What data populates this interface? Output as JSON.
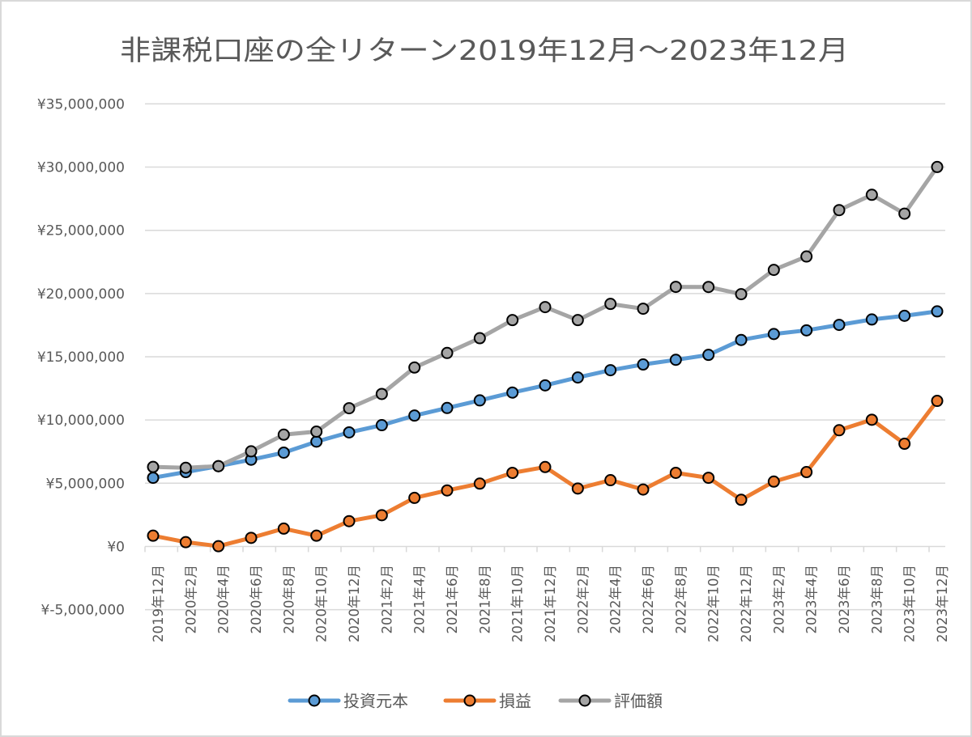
{
  "chart_data": {
    "type": "line",
    "title": "非課税口座の全リターン2019年12月～2023年12月",
    "xlabel": "",
    "ylabel": "",
    "ylim": [
      -5000000,
      35000000
    ],
    "y_ticks": [
      35000000,
      30000000,
      25000000,
      20000000,
      15000000,
      10000000,
      5000000,
      0,
      -5000000
    ],
    "y_tick_labels": [
      "¥35,000,000",
      "¥30,000,000",
      "¥25,000,000",
      "¥20,000,000",
      "¥15,000,000",
      "¥10,000,000",
      "¥5,000,000",
      "¥0",
      "¥-5,000,000"
    ],
    "grid": true,
    "legend_position": "bottom",
    "categories": [
      "2019年12月",
      "2020年2月",
      "2020年4月",
      "2020年6月",
      "2020年8月",
      "2020年10月",
      "2020年12月",
      "2021年2月",
      "2021年4月",
      "2021年6月",
      "2021年8月",
      "2021年10月",
      "2021年12月",
      "2022年2月",
      "2022年4月",
      "2022年6月",
      "2022年8月",
      "2022年10月",
      "2022年12月",
      "2023年2月",
      "2023年4月",
      "2023年6月",
      "2023年8月",
      "2023年10月",
      "2023年12月"
    ],
    "series": [
      {
        "name": "投資元本",
        "color": "#5b9bd5",
        "values": [
          5430000,
          5880000,
          6350000,
          6860000,
          7420000,
          8290000,
          9020000,
          9590000,
          10350000,
          10950000,
          11550000,
          12170000,
          12740000,
          13360000,
          13940000,
          14390000,
          14760000,
          15150000,
          16330000,
          16800000,
          17090000,
          17520000,
          17950000,
          18240000,
          18590000
        ]
      },
      {
        "name": "損益",
        "color": "#ed7d31",
        "values": [
          850000,
          340000,
          20000,
          680000,
          1410000,
          850000,
          2000000,
          2470000,
          3840000,
          4430000,
          4970000,
          5820000,
          6280000,
          4580000,
          5240000,
          4500000,
          5820000,
          5430000,
          3690000,
          5130000,
          5880000,
          9190000,
          10020000,
          8120000,
          11510000
        ]
      },
      {
        "name": "評価額",
        "color": "#a5a5a5",
        "values": [
          6290000,
          6220000,
          6350000,
          7520000,
          8840000,
          9080000,
          10930000,
          12060000,
          14150000,
          15300000,
          16470000,
          17900000,
          18930000,
          17900000,
          19180000,
          18800000,
          20530000,
          20520000,
          19950000,
          21870000,
          22930000,
          26600000,
          27810000,
          26320000,
          30010000
        ]
      }
    ]
  }
}
